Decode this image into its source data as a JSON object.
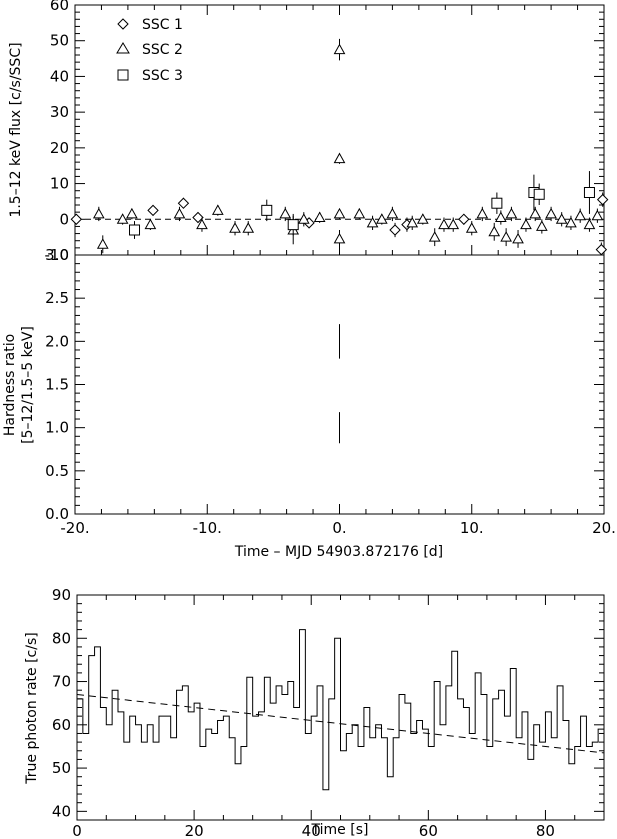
{
  "chart_data": [
    {
      "type": "scatter",
      "panel": "top",
      "ylabel": "1.5–12 keV flux [c/s/SSC]",
      "xlim": [
        -20,
        20
      ],
      "ylim": [
        -10,
        60
      ],
      "yticks": [
        "-10",
        "0",
        "10",
        "20",
        "30",
        "40",
        "50",
        "60"
      ],
      "reference_line": 0,
      "legend_position": "top-left",
      "series": [
        {
          "name": "SSC 1",
          "marker": "diamond",
          "points": [
            {
              "x": -19.9,
              "y": 0,
              "err": 1
            },
            {
              "x": -14.1,
              "y": 2.5,
              "err": 1.5
            },
            {
              "x": -11.8,
              "y": 4.5,
              "err": 1.5
            },
            {
              "x": -10.7,
              "y": 0.5,
              "err": 1.5
            },
            {
              "x": -2.3,
              "y": -1,
              "err": 1.5
            },
            {
              "x": 4.2,
              "y": -3,
              "err": 2
            },
            {
              "x": 5.1,
              "y": -1.5,
              "err": 2
            },
            {
              "x": 9.4,
              "y": 0,
              "err": 1.5
            },
            {
              "x": 19.8,
              "y": -8.5,
              "err": 2
            },
            {
              "x": 19.9,
              "y": 5.5,
              "err": 2
            }
          ]
        },
        {
          "name": "SSC 2",
          "marker": "triangle",
          "points": [
            {
              "x": -17.9,
              "y": -7,
              "err": 2.5
            },
            {
              "x": -18.2,
              "y": 1.5,
              "err": 2
            },
            {
              "x": -16.4,
              "y": 0,
              "err": 1.5
            },
            {
              "x": -15.7,
              "y": 1.5,
              "err": 1.5
            },
            {
              "x": -14.3,
              "y": -1.5,
              "err": 1.5
            },
            {
              "x": -12.1,
              "y": 1.5,
              "err": 2
            },
            {
              "x": -10.4,
              "y": -1.5,
              "err": 2
            },
            {
              "x": -9.2,
              "y": 2.5,
              "err": 1.5
            },
            {
              "x": -7.9,
              "y": -2.5,
              "err": 2
            },
            {
              "x": -6.9,
              "y": -2.5,
              "err": 2
            },
            {
              "x": -4.1,
              "y": 1.5,
              "err": 2
            },
            {
              "x": -3.5,
              "y": -3,
              "err": 4
            },
            {
              "x": -2.7,
              "y": 0,
              "err": 2
            },
            {
              "x": -1.5,
              "y": 0.5,
              "err": 1.5
            },
            {
              "x": 0,
              "y": -5.5,
              "err": 2.5
            },
            {
              "x": 0,
              "y": 1.5,
              "err": 1.5
            },
            {
              "x": 0,
              "y": 17,
              "err": 1.5
            },
            {
              "x": 0,
              "y": 47.5,
              "err": 3
            },
            {
              "x": 1.5,
              "y": 1.5,
              "err": 1.5
            },
            {
              "x": 2.5,
              "y": -1,
              "err": 2
            },
            {
              "x": 3.2,
              "y": 0,
              "err": 1.5
            },
            {
              "x": 4.0,
              "y": 1.5,
              "err": 2
            },
            {
              "x": 5.5,
              "y": -1,
              "err": 2
            },
            {
              "x": 6.3,
              "y": 0,
              "err": 1.5
            },
            {
              "x": 7.2,
              "y": -5,
              "err": 2.5
            },
            {
              "x": 7.9,
              "y": -1.5,
              "err": 2
            },
            {
              "x": 8.6,
              "y": -1.5,
              "err": 2
            },
            {
              "x": 10.0,
              "y": -2.5,
              "err": 2
            },
            {
              "x": 10.8,
              "y": 1.5,
              "err": 2
            },
            {
              "x": 11.7,
              "y": -3.5,
              "err": 2.5
            },
            {
              "x": 12.2,
              "y": 0.5,
              "err": 2
            },
            {
              "x": 12.6,
              "y": -5,
              "err": 2.5
            },
            {
              "x": 13.0,
              "y": 1.5,
              "err": 2
            },
            {
              "x": 13.5,
              "y": -5.5,
              "err": 2.5
            },
            {
              "x": 14.1,
              "y": -1.5,
              "err": 2
            },
            {
              "x": 14.8,
              "y": 1.5,
              "err": 2
            },
            {
              "x": 15.3,
              "y": -2,
              "err": 2
            },
            {
              "x": 16.0,
              "y": 1.5,
              "err": 2
            },
            {
              "x": 16.8,
              "y": 0,
              "err": 2
            },
            {
              "x": 17.5,
              "y": -1,
              "err": 2
            },
            {
              "x": 18.2,
              "y": 1,
              "err": 2
            },
            {
              "x": 18.9,
              "y": -1.5,
              "err": 2
            },
            {
              "x": 19.5,
              "y": 1,
              "err": 2
            }
          ]
        },
        {
          "name": "SSC 3",
          "marker": "square",
          "points": [
            {
              "x": -15.5,
              "y": -3,
              "err": 2.5
            },
            {
              "x": -5.5,
              "y": 2.5,
              "err": 3
            },
            {
              "x": -3.5,
              "y": -1.5,
              "err": 3
            },
            {
              "x": 11.9,
              "y": 4.5,
              "err": 3
            },
            {
              "x": 14.7,
              "y": 7.5,
              "err": 5
            },
            {
              "x": 15.1,
              "y": 7,
              "err": 3
            },
            {
              "x": 18.9,
              "y": 7.5,
              "err": 6
            }
          ]
        }
      ]
    },
    {
      "type": "scatter",
      "panel": "middle",
      "ylabel": "Hardness ratio",
      "ylabel2": "[5–12/1.5–5 keV]",
      "xlabel": "Time – MJD 54903.872176 [d]",
      "xlim": [
        -20,
        20
      ],
      "ylim": [
        0,
        3
      ],
      "xticks": [
        "-20.",
        "-10.",
        "0.",
        "10.",
        "20."
      ],
      "yticks": [
        "0.0",
        "0.5",
        "1.0",
        "1.5",
        "2.0",
        "2.5",
        "3.0"
      ],
      "series": [
        {
          "points": [
            {
              "x": 0,
              "y": 2.0,
              "err": 0.2
            },
            {
              "x": 0,
              "y": 1.0,
              "err": 0.18
            }
          ]
        }
      ]
    },
    {
      "type": "line",
      "panel": "bottom",
      "ylabel": "True photon rate [c/s]",
      "xlabel": "Time [s]",
      "xlim": [
        0,
        90
      ],
      "ylim": [
        38,
        90
      ],
      "xticks": [
        "0",
        "20",
        "40",
        "60",
        "80"
      ],
      "yticks": [
        "40",
        "50",
        "60",
        "70",
        "80",
        "90"
      ],
      "bin_width": 1,
      "step_values": [
        66,
        58,
        76,
        78,
        64,
        60,
        68,
        63,
        56,
        62,
        60,
        56,
        60,
        56,
        62,
        62,
        57,
        68,
        69,
        63,
        65,
        55,
        59,
        58,
        61,
        62,
        57,
        51,
        55,
        71,
        62,
        63,
        71,
        65,
        69,
        67,
        70,
        64,
        82,
        58,
        62,
        69,
        45,
        66,
        80,
        54,
        58,
        60,
        55,
        64,
        57,
        60,
        57,
        48,
        57,
        67,
        65,
        58,
        61,
        59,
        55,
        70,
        60,
        69,
        77,
        66,
        64,
        58,
        72,
        67,
        55,
        66,
        68,
        62,
        73,
        57,
        63,
        52,
        60,
        56,
        63,
        57,
        69,
        61,
        51,
        55,
        62,
        55,
        56,
        59
      ],
      "trend": {
        "start": [
          0,
          67
        ],
        "end": [
          90,
          53.5
        ]
      }
    }
  ]
}
